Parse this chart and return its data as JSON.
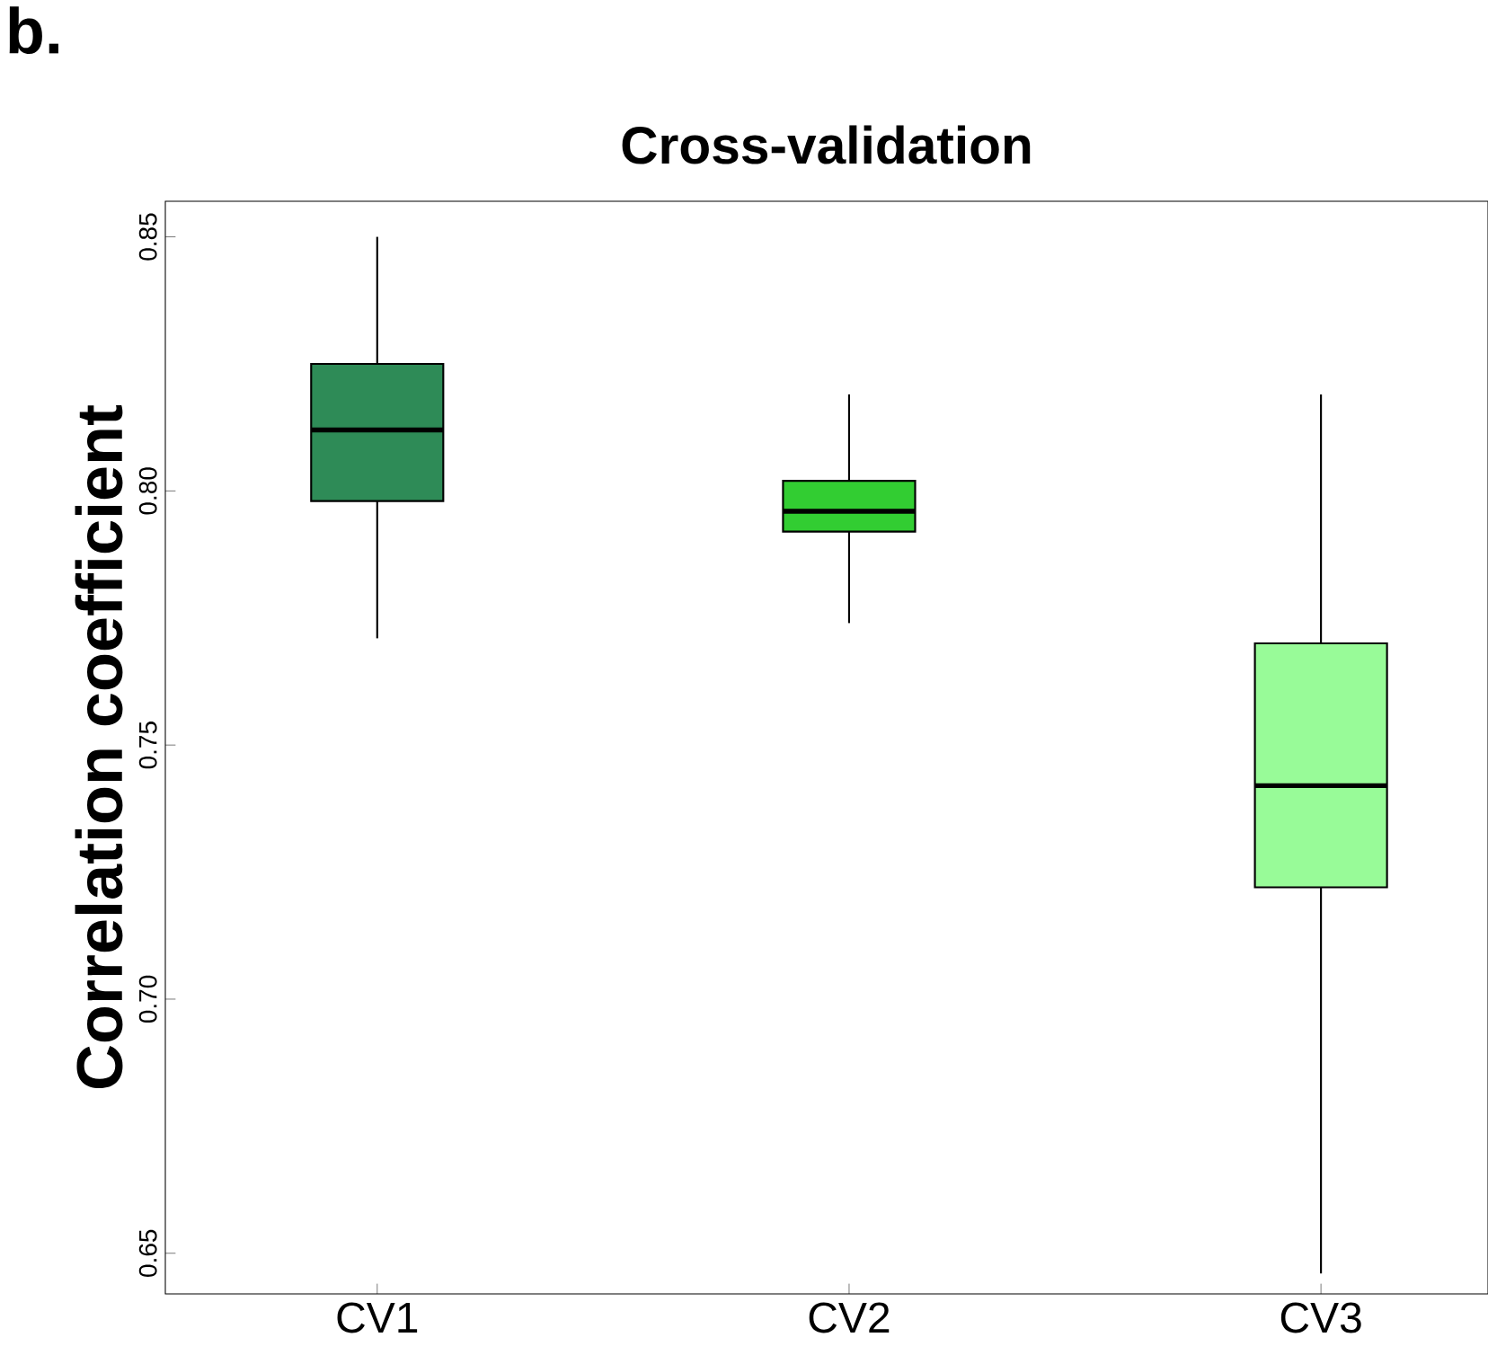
{
  "chart_data": {
    "type": "box",
    "title": "Cross-validation",
    "ylabel": "Correlation coefficient",
    "categories": [
      "CV1",
      "CV2",
      "CV3"
    ],
    "colors": [
      "#2e8b57",
      "#32cd32",
      "#98fb98"
    ],
    "boxes": [
      {
        "low": 0.771,
        "q1": 0.798,
        "median": 0.812,
        "q3": 0.825,
        "high": 0.85
      },
      {
        "low": 0.774,
        "q1": 0.792,
        "median": 0.796,
        "q3": 0.802,
        "high": 0.819
      },
      {
        "low": 0.646,
        "q1": 0.722,
        "median": 0.742,
        "q3": 0.77,
        "high": 0.819
      }
    ],
    "ylim": [
      0.642,
      0.857
    ],
    "yticks": [
      {
        "value": 0.65,
        "label": "0.65"
      },
      {
        "value": 0.7,
        "label": "0.70"
      },
      {
        "value": 0.75,
        "label": "0.75"
      },
      {
        "value": 0.8,
        "label": "0.80"
      },
      {
        "value": 0.85,
        "label": "0.85"
      }
    ],
    "annotations": [
      "b."
    ]
  }
}
